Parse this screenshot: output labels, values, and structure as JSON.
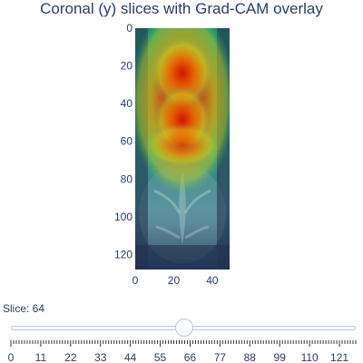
{
  "title": "Coronal (y) slices with Grad-CAM overlay",
  "colors": {
    "text": "#2a3f5f",
    "rail_fill": "#f8fafc",
    "rail_border": "#bec8d9",
    "tick": "#333333",
    "image_bg": "#1e2438"
  },
  "axes": {
    "y_ticks": [
      "0",
      "20",
      "40",
      "60",
      "80",
      "100",
      "120"
    ],
    "x_ticks": [
      "0",
      "20",
      "40"
    ],
    "y_range": [
      0,
      128
    ],
    "x_range": [
      0,
      49
    ],
    "y_reversed": true
  },
  "overlay": {
    "name": "Grad-CAM",
    "colormap": "jet",
    "hotspots": [
      {
        "x": 24,
        "y": 20,
        "level": 0.95
      },
      {
        "x": 24,
        "y": 40,
        "level": 0.95
      },
      {
        "x": 24,
        "y": 58,
        "level": 0.85
      }
    ]
  },
  "slider": {
    "label": "Slice: 64",
    "value": 64,
    "min": 0,
    "max": 127,
    "tick_labels": [
      "0",
      "11",
      "22",
      "33",
      "44",
      "55",
      "66",
      "77",
      "88",
      "99",
      "110",
      "121"
    ]
  }
}
